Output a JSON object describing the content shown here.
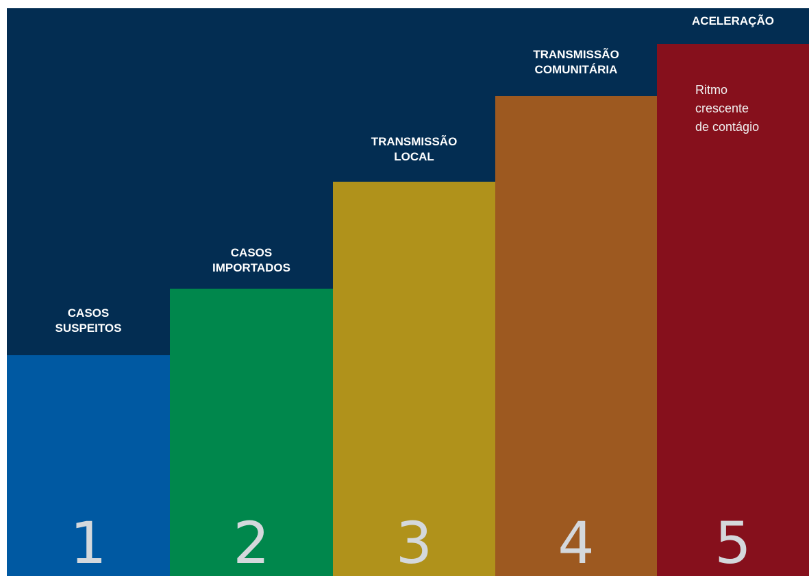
{
  "steps": [
    {
      "number": "1",
      "label": "CASOS\nSUSPEITOS",
      "color": "#0059a2"
    },
    {
      "number": "2",
      "label": "CASOS\nIMPORTADOS",
      "color": "#00874c"
    },
    {
      "number": "3",
      "label": "TRANSMISSÃO\nLOCAL",
      "color": "#b0921b"
    },
    {
      "number": "4",
      "label": "TRANSMISSÃO\nCOMUNITÁRIA",
      "color": "#9d5920"
    },
    {
      "number": "5",
      "label": "ACELERAÇÃO",
      "color": "#86101c",
      "description": "Ritmo\ncrescente\nde contágio"
    }
  ]
}
